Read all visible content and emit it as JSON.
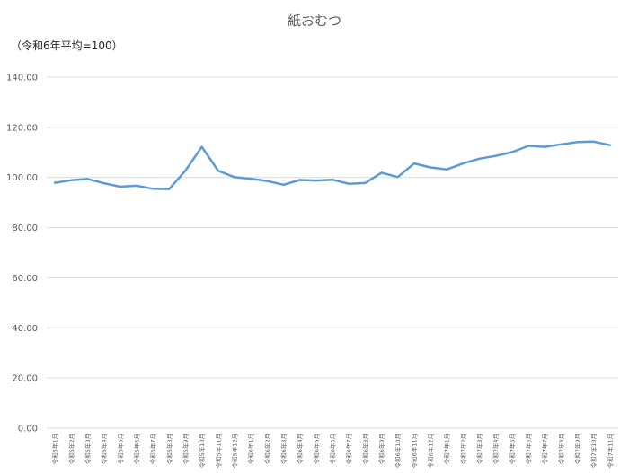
{
  "chart_data": {
    "type": "line",
    "title": "紙おむつ",
    "subtitle": "（令和6年平均=100）",
    "xlabel": "",
    "ylabel": "",
    "ylim": [
      0,
      140
    ],
    "yticks": [
      "0.00",
      "20.00",
      "40.00",
      "60.00",
      "80.00",
      "100.00",
      "120.00",
      "140.00"
    ],
    "grid": true,
    "legend": "none",
    "line_color": "#5b9bd5",
    "categories": [
      "令和5年1月",
      "令和5年2月",
      "令和5年3月",
      "令和5年4月",
      "令和5年5月",
      "令和5年6月",
      "令和5年7月",
      "令和5年8月",
      "令和5年9月",
      "令和5年10月",
      "令和5年11月",
      "令和5年12月",
      "令和6年1月",
      "令和6年2月",
      "令和6年3月",
      "令和6年4月",
      "令和6年5月",
      "令和6年6月",
      "令和6年7月",
      "令和6年8月",
      "令和6年9月",
      "令和6年10月",
      "令和6年11月",
      "令和6年12月",
      "令和7年1月",
      "令和7年2月",
      "令和7年3月",
      "令和7年4月",
      "令和7年5月",
      "令和7年6月",
      "令和7年7月",
      "令和7年8月",
      "令和7年9月",
      "令和7年10月",
      "令和7年11月"
    ],
    "series": [
      {
        "values": [
          97.9,
          98.9,
          99.4,
          97.7,
          96.3,
          96.7,
          95.5,
          95.4,
          102.8,
          112.2,
          102.7,
          100.1,
          99.5,
          98.6,
          97.1,
          99.0,
          98.8,
          99.1,
          97.5,
          97.8,
          101.9,
          100.2,
          105.6,
          104.0,
          103.2,
          105.6,
          107.5,
          108.6,
          110.1,
          112.6,
          112.2,
          113.2,
          114.1,
          114.3,
          112.9
        ]
      }
    ]
  }
}
